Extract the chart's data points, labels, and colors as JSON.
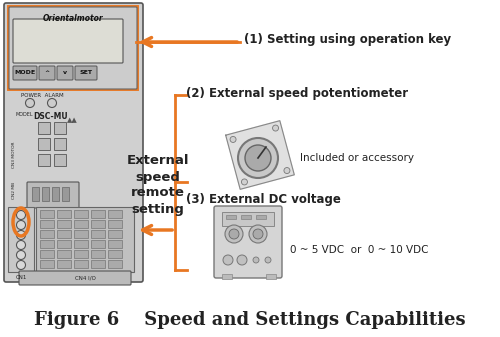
{
  "title": "Figure 6    Speed and Settings Capabilities",
  "title_fontsize": 13,
  "bg_color": "#ffffff",
  "orange_color": "#E87722",
  "dark_gray": "#222222",
  "label1": "(1) Setting using operation key",
  "label2": "(2) External speed potentiometer",
  "label3": "(3) External DC voltage",
  "sub_label2": "Included or accessory",
  "sub_label3": "0 ~ 5 VDC  or  0 ~ 10 VDC",
  "ext_label": "External\nspeed\nremote\nsetting",
  "orientalmotor_text": "Orientalmotor",
  "model_text": "MODEL DSC-MU",
  "cn1_text": "CN1",
  "cn4io_text": "CN4 I/O",
  "power_text": "POWER  ALARM",
  "cn3_text": "CN3 MOTOR",
  "cn2_text": "CN2 MB"
}
